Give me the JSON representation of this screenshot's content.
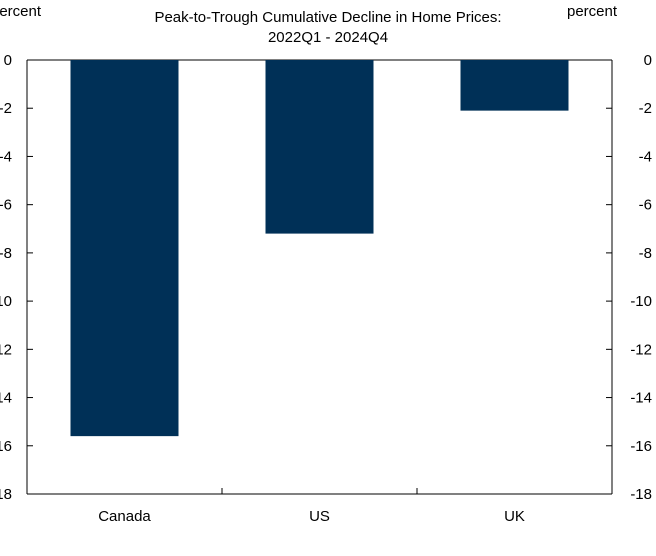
{
  "chart_data": {
    "type": "bar",
    "title": "Peak-to-Trough Cumulative Decline in Home Prices:",
    "subtitle": "2022Q1 - 2024Q4",
    "ylabel_left": "percent",
    "ylabel_right": "percent",
    "categories": [
      "Canada",
      "US",
      "UK"
    ],
    "values": [
      -15.6,
      -7.2,
      -2.1
    ],
    "ylim": [
      -18,
      0
    ],
    "yticks": [
      0,
      -2,
      -4,
      -6,
      -8,
      -10,
      -12,
      -14,
      -16,
      -18
    ],
    "bar_color": "#003057",
    "grid": false,
    "legend": "none"
  }
}
